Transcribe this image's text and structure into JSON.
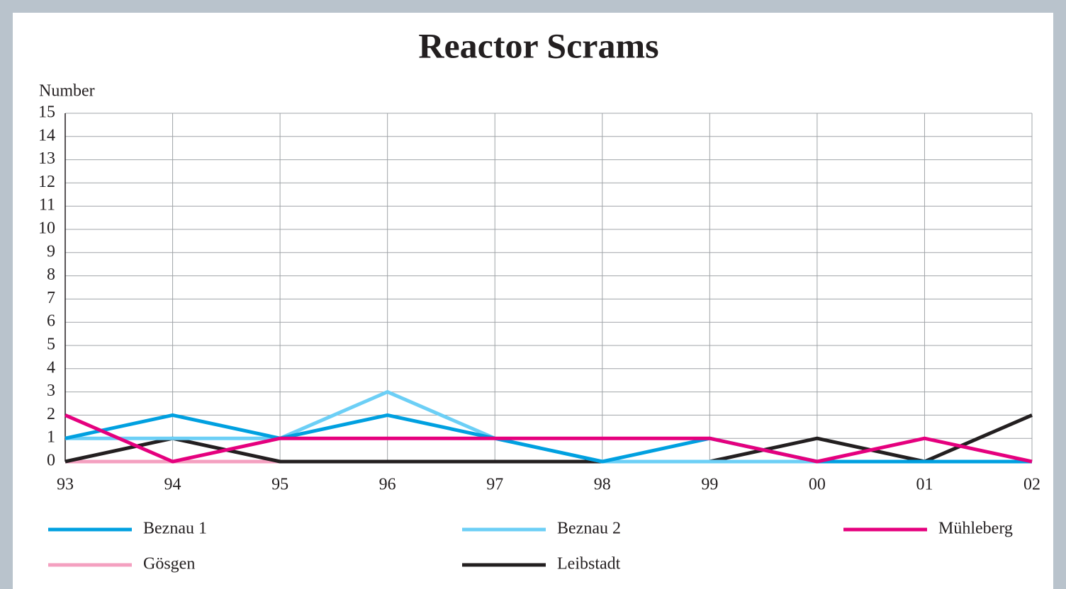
{
  "chart_data": {
    "type": "line",
    "title": "Reactor Scrams",
    "y_label": "Number",
    "categories": [
      "93",
      "94",
      "95",
      "96",
      "97",
      "98",
      "99",
      "00",
      "01",
      "02"
    ],
    "series": [
      {
        "name": "Beznau 1",
        "color": "#00a0e0",
        "values": [
          1,
          2,
          1,
          2,
          1,
          0,
          1,
          0,
          0,
          0
        ]
      },
      {
        "name": "Beznau 2",
        "color": "#6ccff6",
        "values": [
          1,
          1,
          1,
          3,
          1,
          0,
          0,
          0,
          0,
          0
        ]
      },
      {
        "name": "Mühleberg",
        "color": "#e5007e",
        "values": [
          2,
          0,
          1,
          1,
          1,
          1,
          1,
          0,
          1,
          0
        ]
      },
      {
        "name": "Gösgen",
        "color": "#f4a0c0",
        "values": [
          0,
          0,
          0,
          0,
          0,
          0,
          0,
          0,
          0,
          0
        ]
      },
      {
        "name": "Leibstadt",
        "color": "#231f20",
        "values": [
          0,
          1,
          0,
          0,
          0,
          0,
          0,
          1,
          0,
          2
        ]
      }
    ],
    "ylim": [
      0,
      15
    ],
    "yticks": [
      0,
      1,
      2,
      3,
      4,
      5,
      6,
      7,
      8,
      9,
      10,
      11,
      12,
      13,
      14,
      15
    ],
    "grid": true
  }
}
